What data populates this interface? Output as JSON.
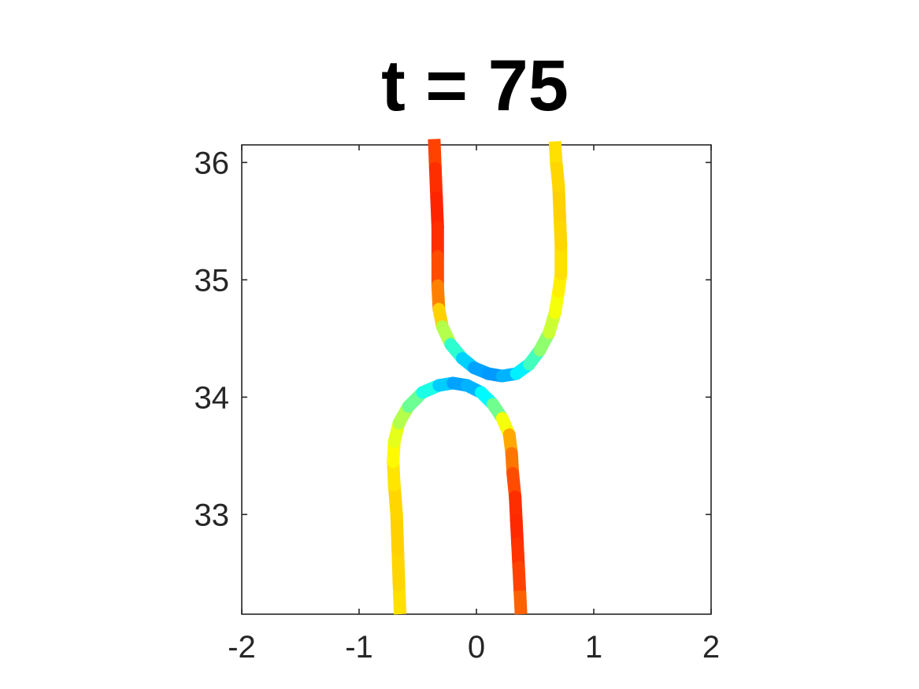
{
  "chart_data": {
    "type": "line",
    "title": "t = 75",
    "xlabel": "",
    "ylabel": "",
    "xlim": [
      -2,
      2
    ],
    "ylim": [
      32.15,
      36.15
    ],
    "x_ticks": [
      -2,
      -1,
      0,
      1,
      2
    ],
    "y_ticks": [
      33,
      34,
      35,
      36
    ],
    "x_tick_labels": [
      "-2",
      "-1",
      "0",
      "1",
      "2"
    ],
    "y_tick_labels": [
      "33",
      "34",
      "35",
      "36"
    ],
    "grid": false,
    "legend": "none",
    "colormap": "jet",
    "series": [
      {
        "x": [
          -0.36,
          -0.35,
          -0.34,
          -0.33,
          -0.33,
          -0.33,
          -0.32,
          -0.29,
          -0.22,
          -0.12,
          -0.02,
          0.1,
          0.22,
          0.34,
          0.45,
          0.54,
          0.62,
          0.67,
          0.7,
          0.72,
          0.72,
          0.71,
          0.7,
          0.68,
          0.67
        ],
        "y": [
          36.2,
          35.95,
          35.7,
          35.45,
          35.2,
          34.95,
          34.75,
          34.6,
          34.45,
          34.33,
          34.25,
          34.2,
          34.18,
          34.2,
          34.28,
          34.4,
          34.55,
          34.72,
          34.9,
          35.05,
          35.3,
          35.55,
          35.8,
          36.0,
          36.18
        ],
        "c": [
          0.8,
          0.82,
          0.84,
          0.84,
          0.82,
          0.78,
          0.72,
          0.62,
          0.48,
          0.36,
          0.3,
          0.27,
          0.28,
          0.32,
          0.4,
          0.48,
          0.55,
          0.6,
          0.63,
          0.65,
          0.66,
          0.67,
          0.67,
          0.66,
          0.65
        ]
      },
      {
        "x": [
          -0.65,
          -0.66,
          -0.67,
          -0.68,
          -0.7,
          -0.71,
          -0.7,
          -0.66,
          -0.58,
          -0.46,
          -0.32,
          -0.2,
          -0.08,
          0.04,
          0.14,
          0.22,
          0.28,
          0.3,
          0.31,
          0.33,
          0.34,
          0.35,
          0.36,
          0.37,
          0.38
        ],
        "y": [
          32.15,
          32.4,
          32.7,
          33.0,
          33.25,
          33.45,
          33.62,
          33.78,
          33.92,
          34.04,
          34.1,
          34.12,
          34.1,
          34.04,
          33.94,
          33.82,
          33.68,
          33.52,
          33.35,
          33.15,
          32.95,
          32.75,
          32.55,
          32.35,
          32.15
        ],
        "c": [
          0.65,
          0.66,
          0.67,
          0.67,
          0.66,
          0.64,
          0.62,
          0.58,
          0.52,
          0.44,
          0.36,
          0.29,
          0.28,
          0.32,
          0.42,
          0.55,
          0.68,
          0.74,
          0.78,
          0.82,
          0.84,
          0.83,
          0.82,
          0.8,
          0.76
        ]
      }
    ]
  }
}
